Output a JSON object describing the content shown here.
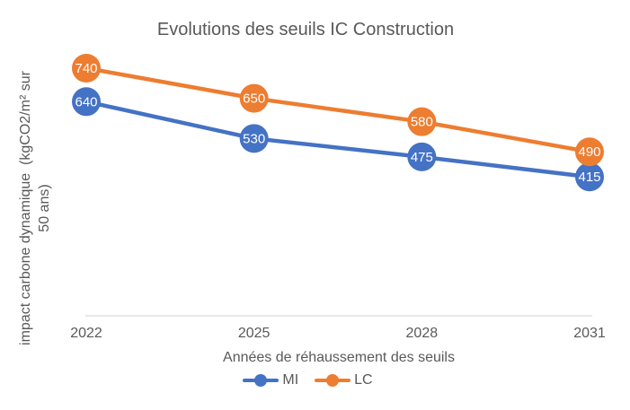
{
  "chart_data": {
    "type": "line",
    "title": "Evolutions des seuils IC Construction",
    "categories": [
      "2022",
      "2025",
      "2028",
      "2031"
    ],
    "series": [
      {
        "name": "MI",
        "color": "#4472C4",
        "values": [
          640,
          530,
          475,
          415
        ]
      },
      {
        "name": "LC",
        "color": "#ED7D31",
        "values": [
          740,
          650,
          580,
          490
        ]
      }
    ],
    "xlabel": "Années de réhaussement des seuils",
    "ylabel": "impact carbone dynamique  (kgCO2/m² sur 50 ans)",
    "ylabel_lines": [
      "impact carbone dynamique  (kgCO2/m² sur",
      "50 ans)"
    ],
    "ylim": [
      0,
      790
    ],
    "grid": false,
    "legend_position": "bottom",
    "data_labels": "inside-circular-markers"
  },
  "colors": {
    "title_text": "#595959",
    "axis_text": "#595959",
    "axis_line": "#D9D9D9",
    "data_label_text": "#FFFFFF"
  }
}
